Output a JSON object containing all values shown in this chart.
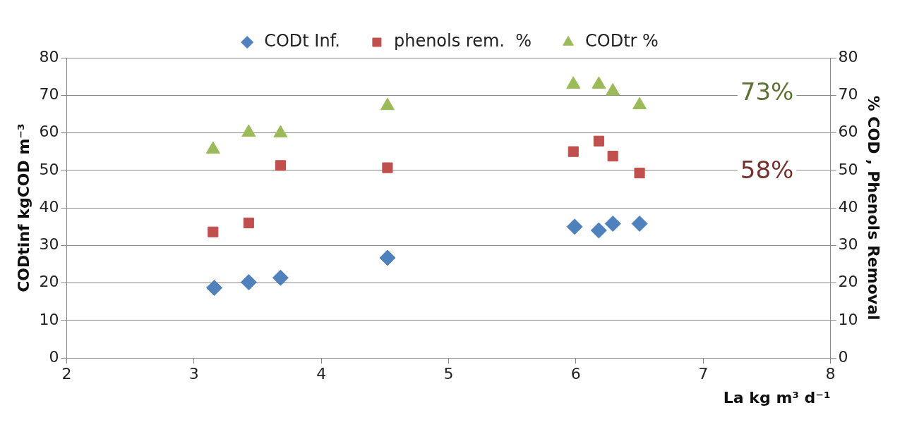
{
  "chart_data": {
    "type": "scatter",
    "xlabel": "La kg m³ d⁻¹",
    "ylabel": "CODtinf kgCOD m⁻³",
    "y2label": "% COD , Phenols Removal",
    "series": [
      {
        "name": "CODt Inf.",
        "color": "#4f81bd",
        "marker": "diamond",
        "x": [
          3.16,
          3.43,
          3.68,
          4.52,
          5.99,
          6.18,
          6.29,
          6.5
        ],
        "values": [
          18.7,
          20.2,
          21.4,
          26.7,
          35.0,
          34.0,
          35.8,
          35.8
        ]
      },
      {
        "name": "phenols rem.  %",
        "color": "#c0504d",
        "marker": "square",
        "x": [
          3.15,
          3.43,
          3.68,
          4.52,
          5.98,
          6.18,
          6.29,
          6.5
        ],
        "values": [
          33.6,
          36.0,
          51.3,
          50.7,
          55.0,
          57.8,
          53.8,
          49.3
        ]
      },
      {
        "name": "CODtr %",
        "color": "#9bbb59",
        "marker": "triangle",
        "x": [
          3.15,
          3.43,
          3.68,
          4.52,
          5.98,
          6.18,
          6.29,
          6.5
        ],
        "values": [
          55.6,
          60.1,
          59.9,
          67.2,
          72.9,
          72.9,
          71.1,
          67.4
        ]
      }
    ],
    "annotations": [
      "73%",
      "58%"
    ],
    "xlim": [
      2,
      8
    ],
    "xticks": [
      2,
      3,
      4,
      5,
      6,
      7,
      8
    ],
    "ylim": [
      0,
      80
    ],
    "yticks": [
      0,
      10,
      20,
      30,
      40,
      50,
      60,
      70,
      80
    ],
    "y2lim": [
      0,
      80
    ],
    "y2ticks": [
      0,
      10,
      20,
      30,
      40,
      50,
      60,
      70,
      80
    ],
    "grid": "y",
    "legend": "top"
  }
}
